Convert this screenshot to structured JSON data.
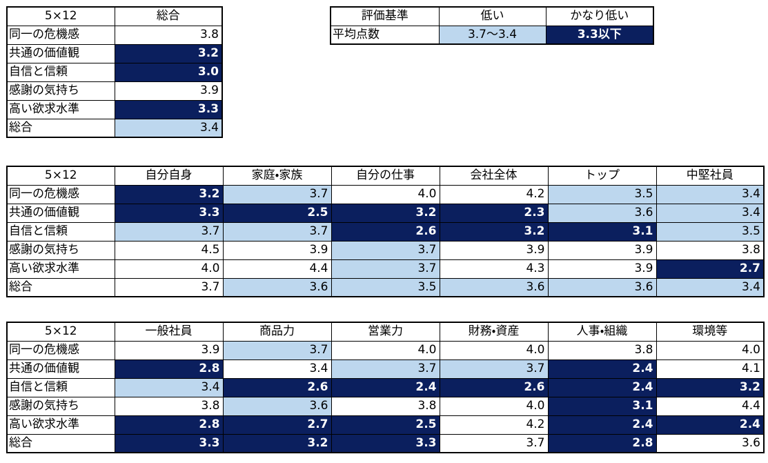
{
  "colors": {
    "low": "#bdd7ee",
    "very_low": "#0b1f5e"
  },
  "tables": [
    {
      "columns": [
        "5×12",
        "総合"
      ],
      "rows": [
        {
          "label": "同一の危機感",
          "cells": [
            "3.8"
          ],
          "shading": [
            "none"
          ]
        },
        {
          "label": "共通の価値観",
          "cells": [
            "3.2"
          ],
          "shading": [
            "very_low"
          ]
        },
        {
          "label": "自信と信頼",
          "cells": [
            "3.0"
          ],
          "shading": [
            "very_low"
          ]
        },
        {
          "label": "感謝の気持ち",
          "cells": [
            "3.9"
          ],
          "shading": [
            "none"
          ]
        },
        {
          "label": "高い欲求水準",
          "cells": [
            "3.3"
          ],
          "shading": [
            "very_low"
          ]
        },
        {
          "label": "総合",
          "cells": [
            "3.4"
          ],
          "shading": [
            "low"
          ]
        }
      ]
    },
    {
      "columns": [
        "評価基準",
        "低い",
        "かなり低い"
      ],
      "rows": [
        {
          "label": "平均点数",
          "cells": [
            "3.7〜3.4",
            "3.3以下"
          ],
          "shading": [
            "low",
            "very_low"
          ]
        }
      ]
    },
    {
      "columns": [
        "5×12",
        "自分自身",
        "家庭・家族",
        "自分の仕事",
        "会社全体",
        "トップ",
        "中堅社員"
      ],
      "rows": [
        {
          "label": "同一の危機感",
          "cells": [
            "3.2",
            "3.7",
            "4.0",
            "4.2",
            "3.5",
            "3.4"
          ],
          "shading": [
            "very_low",
            "low",
            "none",
            "none",
            "low",
            "low"
          ]
        },
        {
          "label": "共通の価値観",
          "cells": [
            "3.3",
            "2.5",
            "3.2",
            "2.3",
            "3.6",
            "3.4"
          ],
          "shading": [
            "very_low",
            "very_low",
            "very_low",
            "very_low",
            "low",
            "low"
          ]
        },
        {
          "label": "自信と信頼",
          "cells": [
            "3.7",
            "3.7",
            "2.6",
            "3.2",
            "3.1",
            "3.5"
          ],
          "shading": [
            "low",
            "low",
            "very_low",
            "very_low",
            "very_low",
            "low"
          ]
        },
        {
          "label": "感謝の気持ち",
          "cells": [
            "4.5",
            "3.9",
            "3.7",
            "3.9",
            "3.9",
            "3.8"
          ],
          "shading": [
            "none",
            "none",
            "low",
            "none",
            "none",
            "none"
          ]
        },
        {
          "label": "高い欲求水準",
          "cells": [
            "4.0",
            "4.4",
            "3.7",
            "4.3",
            "3.9",
            "2.7"
          ],
          "shading": [
            "none",
            "none",
            "low",
            "none",
            "none",
            "very_low"
          ]
        },
        {
          "label": "総合",
          "cells": [
            "3.7",
            "3.6",
            "3.5",
            "3.6",
            "3.6",
            "3.4"
          ],
          "shading": [
            "none",
            "low",
            "low",
            "low",
            "low",
            "low"
          ]
        }
      ]
    },
    {
      "columns": [
        "5×12",
        "一般社員",
        "商品力",
        "営業力",
        "財務・資産",
        "人事・組織",
        "環境等"
      ],
      "rows": [
        {
          "label": "同一の危機感",
          "cells": [
            "3.9",
            "3.7",
            "4.0",
            "4.0",
            "3.8",
            "4.0"
          ],
          "shading": [
            "none",
            "low",
            "none",
            "none",
            "none",
            "none"
          ]
        },
        {
          "label": "共通の価値観",
          "cells": [
            "2.8",
            "3.4",
            "3.7",
            "3.7",
            "2.4",
            "4.1"
          ],
          "shading": [
            "very_low",
            "none",
            "low",
            "low",
            "very_low",
            "none"
          ]
        },
        {
          "label": "自信と信頼",
          "cells": [
            "3.4",
            "2.6",
            "2.4",
            "2.6",
            "2.4",
            "3.2"
          ],
          "shading": [
            "low",
            "very_low",
            "very_low",
            "very_low",
            "very_low",
            "very_low"
          ]
        },
        {
          "label": "感謝の気持ち",
          "cells": [
            "3.8",
            "3.6",
            "3.8",
            "4.0",
            "3.1",
            "4.4"
          ],
          "shading": [
            "none",
            "low",
            "none",
            "none",
            "very_low",
            "none"
          ]
        },
        {
          "label": "高い欲求水準",
          "cells": [
            "2.8",
            "2.7",
            "2.5",
            "4.2",
            "2.4",
            "2.4"
          ],
          "shading": [
            "very_low",
            "very_low",
            "very_low",
            "none",
            "very_low",
            "very_low"
          ]
        },
        {
          "label": "総合",
          "cells": [
            "3.3",
            "3.2",
            "3.3",
            "3.7",
            "2.8",
            "3.6"
          ],
          "shading": [
            "very_low",
            "very_low",
            "very_low",
            "none",
            "very_low",
            "none"
          ]
        }
      ]
    }
  ]
}
